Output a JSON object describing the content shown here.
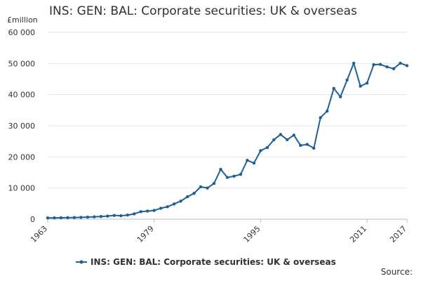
{
  "chart_data": {
    "type": "line",
    "title": "INS: GEN: BAL: Corporate securities: UK & overseas",
    "ylabel": "£million",
    "xlabel": "",
    "ylim": [
      0,
      60000
    ],
    "yticks": [
      0,
      10000,
      20000,
      30000,
      40000,
      50000,
      60000
    ],
    "ytick_labels": [
      "0",
      "10 000",
      "20 000",
      "30 000",
      "40 000",
      "50 000",
      "60 000"
    ],
    "xlim": [
      1963,
      2017
    ],
    "xticks": [
      1963,
      1979,
      1995,
      2011,
      2017
    ],
    "xtick_labels": [
      "1963",
      "1979",
      "1995",
      "2011",
      "2017"
    ],
    "grid": true,
    "legend_position": "bottom",
    "source_label": "Source:",
    "series": [
      {
        "name": "INS: GEN: BAL: Corporate securities: UK & overseas",
        "color": "#206095",
        "x": [
          1963,
          1964,
          1965,
          1966,
          1967,
          1968,
          1969,
          1970,
          1971,
          1972,
          1973,
          1974,
          1975,
          1976,
          1977,
          1978,
          1979,
          1980,
          1981,
          1982,
          1983,
          1984,
          1985,
          1986,
          1987,
          1988,
          1989,
          1990,
          1991,
          1992,
          1993,
          1994,
          1995,
          1996,
          1997,
          1998,
          1999,
          2000,
          2001,
          2002,
          2003,
          2004,
          2005,
          2006,
          2007,
          2008,
          2009,
          2010,
          2011,
          2012,
          2013,
          2014,
          2015,
          2016,
          2017
        ],
        "values": [
          400,
          420,
          450,
          480,
          520,
          580,
          650,
          750,
          850,
          1000,
          1200,
          1100,
          1300,
          1700,
          2400,
          2600,
          2800,
          3500,
          4000,
          4900,
          5800,
          7200,
          8300,
          10400,
          10000,
          11500,
          16000,
          13400,
          13800,
          14400,
          18900,
          18000,
          22000,
          23000,
          25500,
          27200,
          25500,
          27000,
          23700,
          24000,
          22800,
          32600,
          34700,
          42000,
          39300,
          44700,
          50100,
          42700,
          43700,
          49600,
          49700,
          48900,
          48300,
          50100,
          49300
        ]
      }
    ]
  }
}
